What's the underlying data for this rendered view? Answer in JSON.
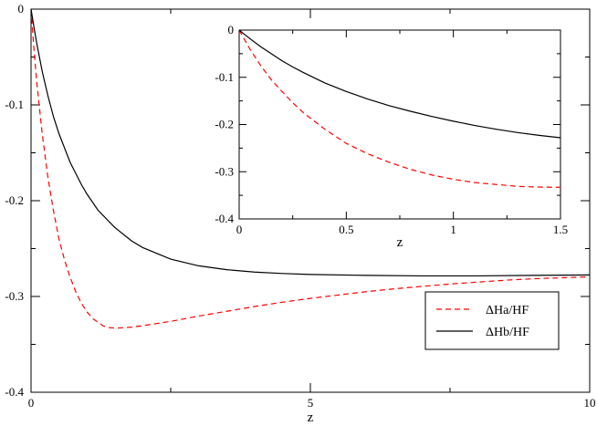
{
  "chart_data": [
    {
      "type": "line",
      "role": "main",
      "xlabel": "z",
      "ylabel": "",
      "xlim": [
        0,
        10
      ],
      "ylim": [
        -0.4,
        0
      ],
      "x_ticks": [
        0,
        5,
        10
      ],
      "x_tick_labels": [
        "0",
        "5",
        "10"
      ],
      "y_ticks": [
        0,
        -0.1,
        -0.2,
        -0.3,
        -0.4
      ],
      "y_tick_labels": [
        "0",
        "-0.1",
        "-0.2",
        "-0.3",
        "-0.4"
      ],
      "grid": false,
      "legend_position": "bottom-right",
      "series": [
        {
          "name": "ΔHa/HF",
          "style": "dashed",
          "color": "#ff0000",
          "x": [
            0,
            0.05,
            0.1,
            0.2,
            0.3,
            0.4,
            0.5,
            0.6,
            0.7,
            0.8,
            0.9,
            1.0,
            1.1,
            1.2,
            1.3,
            1.4,
            1.5,
            1.6,
            1.8,
            2.0,
            2.5,
            3.0,
            3.5,
            4.0,
            4.5,
            5.0,
            5.5,
            6.0,
            6.5,
            7.0,
            7.5,
            8.0,
            8.5,
            9.0,
            9.5,
            10.0
          ],
          "y": [
            0,
            -0.04,
            -0.075,
            -0.13,
            -0.175,
            -0.21,
            -0.24,
            -0.262,
            -0.28,
            -0.295,
            -0.307,
            -0.316,
            -0.323,
            -0.327,
            -0.331,
            -0.3325,
            -0.333,
            -0.3328,
            -0.332,
            -0.3305,
            -0.326,
            -0.3205,
            -0.3155,
            -0.3105,
            -0.306,
            -0.302,
            -0.2985,
            -0.295,
            -0.292,
            -0.2895,
            -0.287,
            -0.285,
            -0.283,
            -0.2815,
            -0.2805,
            -0.2795
          ]
        },
        {
          "name": "ΔHb/HF",
          "style": "solid",
          "color": "#000000",
          "x": [
            0,
            0.05,
            0.1,
            0.2,
            0.3,
            0.4,
            0.5,
            0.7,
            0.9,
            1.0,
            1.2,
            1.5,
            1.8,
            2.0,
            2.5,
            3.0,
            3.5,
            4.0,
            4.5,
            5.0,
            6.0,
            7.0,
            8.0,
            9.0,
            10.0
          ],
          "y": [
            0,
            -0.018,
            -0.035,
            -0.065,
            -0.09,
            -0.112,
            -0.13,
            -0.16,
            -0.183,
            -0.193,
            -0.21,
            -0.228,
            -0.242,
            -0.249,
            -0.261,
            -0.268,
            -0.272,
            -0.2745,
            -0.276,
            -0.277,
            -0.278,
            -0.2785,
            -0.2785,
            -0.278,
            -0.2775
          ]
        }
      ]
    },
    {
      "type": "line",
      "role": "inset",
      "xlabel": "z",
      "ylabel": "",
      "xlim": [
        0,
        1.5
      ],
      "ylim": [
        -0.4,
        0
      ],
      "x_ticks": [
        0,
        0.5,
        1,
        1.5
      ],
      "x_tick_labels": [
        "0",
        "0.5",
        "1",
        "1.5"
      ],
      "y_ticks": [
        0,
        -0.1,
        -0.2,
        -0.3,
        -0.4
      ],
      "y_tick_labels": [
        "0",
        "-0.1",
        "-0.2",
        "-0.3",
        "-0.4"
      ],
      "grid": false,
      "series": [
        {
          "style": "dashed",
          "color": "#ff0000",
          "x": [
            0,
            0.05,
            0.1,
            0.15,
            0.2,
            0.25,
            0.3,
            0.4,
            0.5,
            0.6,
            0.7,
            0.8,
            0.9,
            1.0,
            1.1,
            1.2,
            1.3,
            1.4,
            1.5
          ],
          "y": [
            0,
            -0.04,
            -0.075,
            -0.105,
            -0.13,
            -0.154,
            -0.175,
            -0.21,
            -0.24,
            -0.262,
            -0.28,
            -0.295,
            -0.307,
            -0.316,
            -0.323,
            -0.327,
            -0.331,
            -0.3325,
            -0.333
          ]
        },
        {
          "style": "solid",
          "color": "#000000",
          "x": [
            0,
            0.05,
            0.1,
            0.15,
            0.2,
            0.25,
            0.3,
            0.4,
            0.5,
            0.6,
            0.7,
            0.8,
            0.9,
            1.0,
            1.1,
            1.2,
            1.3,
            1.4,
            1.5
          ],
          "y": [
            0,
            -0.018,
            -0.035,
            -0.05,
            -0.065,
            -0.078,
            -0.09,
            -0.112,
            -0.13,
            -0.146,
            -0.16,
            -0.172,
            -0.183,
            -0.193,
            -0.202,
            -0.21,
            -0.217,
            -0.223,
            -0.228
          ]
        }
      ]
    }
  ]
}
